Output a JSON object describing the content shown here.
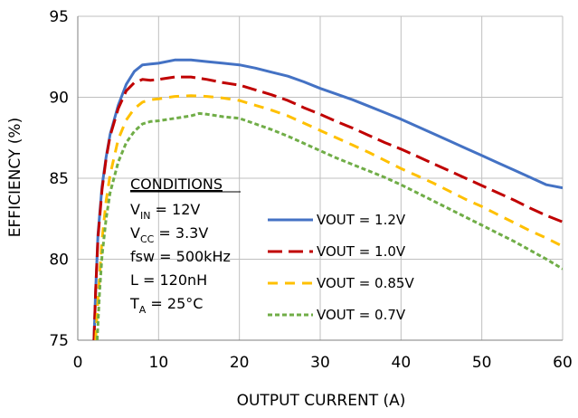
{
  "chart_data": {
    "type": "line",
    "title": "",
    "xlabel": "OUTPUT CURRENT (A)",
    "ylabel": "EFFICIENCY (%)",
    "xlim": [
      0,
      60
    ],
    "ylim": [
      75,
      95
    ],
    "xticks": [
      0,
      10,
      20,
      30,
      40,
      50,
      60
    ],
    "yticks": [
      75,
      80,
      85,
      90,
      95
    ],
    "grid": "vertical and horizontal at major ticks",
    "legend_position": "right-center",
    "conditions": {
      "heading": "CONDITIONS",
      "lines": [
        {
          "main": "V",
          "sub": "IN",
          "rest": " = 12V"
        },
        {
          "main": "V",
          "sub": "CC",
          "rest": " = 3.3V"
        },
        {
          "main": "fsw = 500kHz",
          "sub": "",
          "rest": ""
        },
        {
          "main": "L = 120nH",
          "sub": "",
          "rest": ""
        },
        {
          "main": "T",
          "sub": "A",
          "rest": " = 25°C"
        }
      ]
    },
    "series": [
      {
        "name": "VOUT = 1.2V",
        "color": "#4472c4",
        "dash": "solid",
        "x": [
          2,
          2.2,
          2.5,
          3,
          3.5,
          4,
          5,
          6,
          7,
          8,
          9,
          10,
          12,
          14,
          16,
          18,
          20,
          22,
          24,
          26,
          28,
          30,
          32,
          34,
          36,
          38,
          40,
          42,
          44,
          46,
          48,
          50,
          52,
          54,
          56,
          58,
          60
        ],
        "y": [
          75,
          78,
          81.5,
          84.5,
          86.3,
          87.7,
          89.5,
          90.8,
          91.6,
          92.0,
          92.05,
          92.1,
          92.3,
          92.3,
          92.2,
          92.1,
          92.0,
          91.8,
          91.55,
          91.3,
          90.95,
          90.55,
          90.2,
          89.85,
          89.45,
          89.05,
          88.65,
          88.2,
          87.75,
          87.3,
          86.85,
          86.4,
          85.95,
          85.5,
          85.05,
          84.6,
          84.4
        ]
      },
      {
        "name": "VOUT = 1.0V",
        "color": "#c00000",
        "dash": "long-dash",
        "x": [
          2,
          2.2,
          2.5,
          3,
          3.5,
          4,
          5,
          6,
          7,
          8,
          9,
          10,
          12,
          14,
          16,
          18,
          20,
          22,
          24,
          26,
          28,
          30,
          32,
          34,
          36,
          38,
          40,
          42,
          44,
          46,
          48,
          50,
          52,
          54,
          56,
          58,
          60
        ],
        "y": [
          75,
          78,
          81.3,
          84.3,
          86.2,
          87.6,
          89.3,
          90.4,
          90.9,
          91.1,
          91.05,
          91.1,
          91.25,
          91.25,
          91.1,
          90.9,
          90.75,
          90.45,
          90.15,
          89.8,
          89.35,
          88.95,
          88.5,
          88.1,
          87.65,
          87.2,
          86.8,
          86.35,
          85.9,
          85.45,
          85.0,
          84.55,
          84.1,
          83.65,
          83.15,
          82.7,
          82.3
        ]
      },
      {
        "name": "VOUT = 0.85V",
        "color": "#ffc000",
        "dash": "medium-dash",
        "x": [
          2.2,
          2.5,
          3,
          3.5,
          4,
          5,
          6,
          7,
          8,
          9,
          10,
          12,
          14,
          16,
          18,
          20,
          22,
          24,
          26,
          28,
          30,
          32,
          34,
          36,
          38,
          40,
          42,
          44,
          46,
          48,
          50,
          52,
          54,
          56,
          58,
          60
        ],
        "y": [
          75,
          77.5,
          81.2,
          83.6,
          85.2,
          87.4,
          88.6,
          89.3,
          89.7,
          89.85,
          89.9,
          90.05,
          90.1,
          90.05,
          89.95,
          89.8,
          89.5,
          89.2,
          88.85,
          88.4,
          87.95,
          87.5,
          87.05,
          86.6,
          86.1,
          85.6,
          85.15,
          84.7,
          84.2,
          83.7,
          83.25,
          82.75,
          82.25,
          81.75,
          81.3,
          80.8
        ]
      },
      {
        "name": "VOUT = 0.7V",
        "color": "#70ad47",
        "dash": "dotted",
        "x": [
          2.4,
          2.7,
          3,
          3.5,
          4,
          5,
          6,
          7,
          8,
          9,
          10,
          12,
          14,
          15,
          16,
          18,
          20,
          22,
          24,
          26,
          28,
          30,
          32,
          34,
          36,
          38,
          40,
          42,
          44,
          46,
          48,
          50,
          52,
          54,
          56,
          58,
          60
        ],
        "y": [
          75,
          78,
          80.2,
          82.5,
          84.1,
          86.0,
          87.2,
          87.9,
          88.35,
          88.5,
          88.55,
          88.7,
          88.85,
          89.0,
          88.95,
          88.8,
          88.7,
          88.35,
          88.0,
          87.6,
          87.15,
          86.7,
          86.25,
          85.85,
          85.45,
          85.05,
          84.6,
          84.1,
          83.6,
          83.1,
          82.6,
          82.1,
          81.6,
          81.1,
          80.55,
          80.0,
          79.4
        ]
      }
    ]
  }
}
